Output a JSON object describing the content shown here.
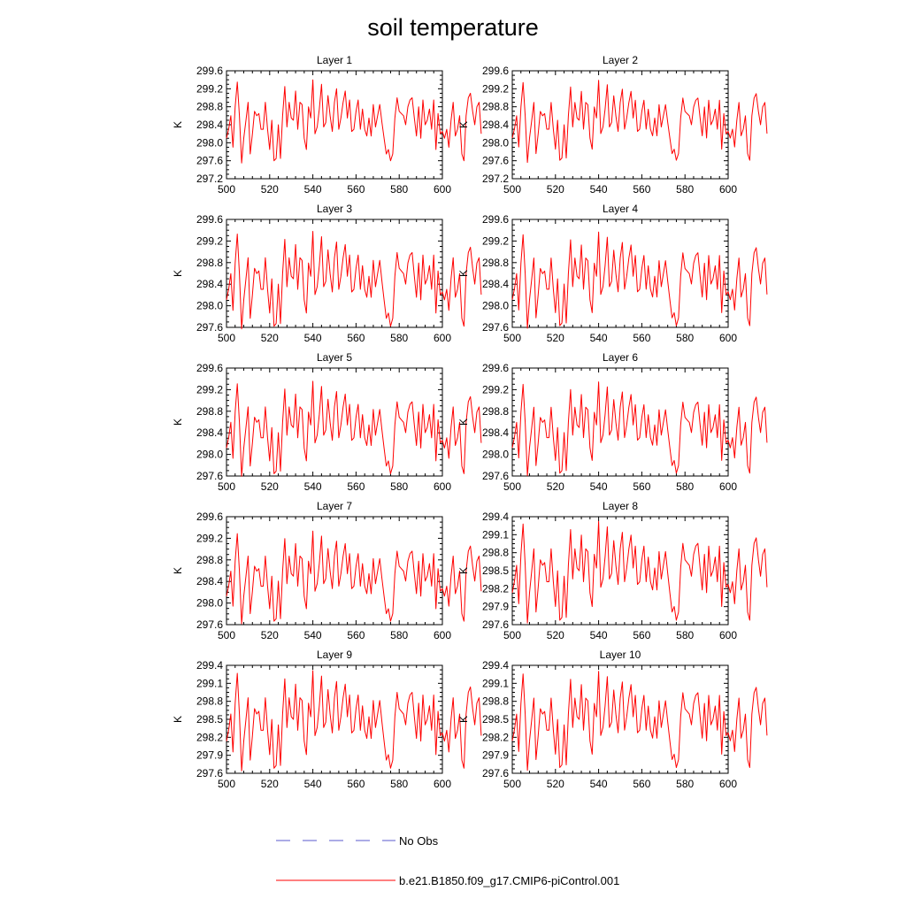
{
  "chart_data": {
    "type": "line",
    "title": "soil temperature",
    "colors": {
      "model": "#ff0000",
      "obs": "#5a5acd",
      "axis": "#000000"
    },
    "legend": {
      "placement": "bottom",
      "entries": [
        {
          "name": "No Obs",
          "style": "dashed",
          "color": "#5a5acd"
        },
        {
          "name": "b.e21.B1850.f09_g17.CMIP6-piControl.001",
          "style": "solid",
          "color": "#ff0000"
        }
      ]
    },
    "xlim": [
      500,
      600
    ],
    "xticks": [
      500,
      520,
      540,
      560,
      580,
      600
    ],
    "panels": [
      {
        "title": "Layer 1",
        "ylabel": "K",
        "ylim": [
          297.2,
          299.6
        ],
        "yticks": [
          297.2,
          297.6,
          298.0,
          298.4,
          298.8,
          299.2,
          299.6
        ],
        "ytick_labels": [
          "297.2",
          "297.6",
          "298.0",
          "298.4",
          "298.8",
          "299.2",
          "299.6"
        ]
      },
      {
        "title": "Layer 2",
        "ylabel": "K",
        "ylim": [
          297.2,
          299.6
        ],
        "yticks": [
          297.2,
          297.6,
          298.0,
          298.4,
          298.8,
          299.2,
          299.6
        ],
        "ytick_labels": [
          "297.2",
          "297.6",
          "298.0",
          "298.4",
          "298.8",
          "299.2",
          "299.6"
        ]
      },
      {
        "title": "Layer 3",
        "ylabel": "K",
        "ylim": [
          297.6,
          299.6
        ],
        "yticks": [
          297.6,
          298.0,
          298.4,
          298.8,
          299.2,
          299.6
        ],
        "ytick_labels": [
          "297.6",
          "298.0",
          "298.4",
          "298.8",
          "299.2",
          "299.6"
        ]
      },
      {
        "title": "Layer 4",
        "ylabel": "K",
        "ylim": [
          297.6,
          299.6
        ],
        "yticks": [
          297.6,
          298.0,
          298.4,
          298.8,
          299.2,
          299.6
        ],
        "ytick_labels": [
          "297.6",
          "298.0",
          "298.4",
          "298.8",
          "299.2",
          "299.6"
        ]
      },
      {
        "title": "Layer 5",
        "ylabel": "K",
        "ylim": [
          297.6,
          299.6
        ],
        "yticks": [
          297.6,
          298.0,
          298.4,
          298.8,
          299.2,
          299.6
        ],
        "ytick_labels": [
          "297.6",
          "298.0",
          "298.4",
          "298.8",
          "299.2",
          "299.6"
        ]
      },
      {
        "title": "Layer 6",
        "ylabel": "K",
        "ylim": [
          297.6,
          299.6
        ],
        "yticks": [
          297.6,
          298.0,
          298.4,
          298.8,
          299.2,
          299.6
        ],
        "ytick_labels": [
          "297.6",
          "298.0",
          "298.4",
          "298.8",
          "299.2",
          "299.6"
        ]
      },
      {
        "title": "Layer 7",
        "ylabel": "K",
        "ylim": [
          297.6,
          299.6
        ],
        "yticks": [
          297.6,
          298.0,
          298.4,
          298.8,
          299.2,
          299.6
        ],
        "ytick_labels": [
          "297.6",
          "298.0",
          "298.4",
          "298.8",
          "299.2",
          "299.6"
        ]
      },
      {
        "title": "Layer 8",
        "ylabel": "K",
        "ylim": [
          297.6,
          299.4
        ],
        "yticks": [
          297.6,
          297.9,
          298.2,
          298.5,
          298.8,
          299.1,
          299.4
        ],
        "ytick_labels": [
          "297.6",
          "297.9",
          "298.2",
          "298.5",
          "298.8",
          "299.1",
          "299.4"
        ]
      },
      {
        "title": "Layer 9",
        "ylabel": "K",
        "ylim": [
          297.6,
          299.4
        ],
        "yticks": [
          297.6,
          297.9,
          298.2,
          298.5,
          298.8,
          299.1,
          299.4
        ],
        "ytick_labels": [
          "297.6",
          "297.9",
          "298.2",
          "298.5",
          "298.8",
          "299.1",
          "299.4"
        ]
      },
      {
        "title": "Layer 10",
        "ylabel": "K",
        "ylim": [
          297.6,
          299.4
        ],
        "yticks": [
          297.6,
          297.9,
          298.2,
          298.5,
          298.8,
          299.1,
          299.4
        ],
        "ytick_labels": [
          "297.6",
          "297.9",
          "298.2",
          "298.5",
          "298.8",
          "299.1",
          "299.4"
        ]
      }
    ],
    "series_base": {
      "name": "b.e21.B1850.f09_g17.CMIP6-piControl.001",
      "x_start": 500,
      "x_step": 1,
      "values": [
        298.1,
        298.3,
        298.6,
        297.9,
        298.8,
        299.35,
        298.6,
        297.55,
        298.1,
        298.5,
        298.9,
        297.75,
        298.2,
        298.7,
        298.6,
        298.65,
        298.3,
        298.3,
        298.9,
        298.3,
        297.85,
        298.5,
        297.6,
        297.65,
        298.4,
        297.65,
        298.6,
        299.25,
        298.35,
        298.9,
        298.55,
        298.5,
        299.15,
        298.3,
        298.9,
        298.85,
        298.1,
        297.85,
        298.8,
        298.55,
        299.4,
        298.2,
        298.35,
        298.75,
        299.3,
        298.35,
        298.45,
        299.05,
        298.6,
        298.25,
        298.9,
        299.2,
        298.3,
        298.55,
        298.9,
        299.15,
        298.55,
        298.95,
        298.25,
        298.3,
        298.7,
        298.95,
        298.3,
        298.75,
        298.3,
        298.15,
        298.55,
        298.15,
        298.85,
        298.35,
        298.6,
        298.85,
        298.45,
        298.1,
        297.75,
        297.85,
        297.6,
        297.75,
        298.55,
        299.0,
        298.7,
        298.65,
        298.6,
        298.4,
        298.8,
        298.95,
        299.0,
        298.55,
        298.15,
        298.8,
        298.1,
        298.95,
        298.4,
        298.5,
        298.75,
        298.3,
        298.95,
        297.85,
        298.65,
        298.2,
        298.25,
        298.1,
        298.3,
        297.9,
        298.5,
        298.9,
        298.15,
        298.3,
        298.6,
        297.75,
        297.6,
        298.6,
        299.0,
        299.1,
        298.7,
        298.4,
        298.8,
        298.9,
        298.2
      ]
    }
  }
}
